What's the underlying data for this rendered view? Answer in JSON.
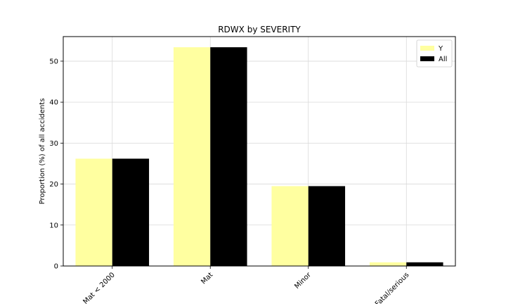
{
  "chart_data": {
    "type": "bar",
    "title": "RDWX by SEVERITY",
    "xlabel": "",
    "ylabel": "Proportion (%) of all accidents",
    "categories": [
      "Mat < 2000",
      "Mat",
      "Minor",
      "Fatal/serious"
    ],
    "series": [
      {
        "name": "Y",
        "values": [
          26.2,
          53.4,
          19.5,
          0.9
        ],
        "color": "#ffffa0"
      },
      {
        "name": "All",
        "values": [
          26.2,
          53.4,
          19.5,
          0.9
        ],
        "color": "#000000"
      }
    ],
    "ylim": [
      0,
      56
    ],
    "yticks": [
      0,
      10,
      20,
      30,
      40,
      50
    ],
    "grid": true,
    "legend": "top-right"
  }
}
